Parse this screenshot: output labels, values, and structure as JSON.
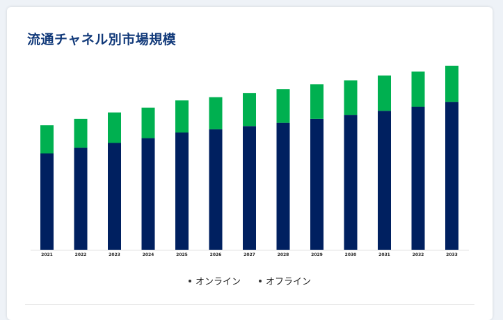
{
  "title": "流通チャネル別市場規模",
  "colors": {
    "online": "#002060",
    "offline": "#00b050",
    "title": "#123a7a"
  },
  "chart_data": {
    "type": "bar",
    "stacked": true,
    "categories": [
      "2021",
      "2022",
      "2023",
      "2024",
      "2025",
      "2026",
      "2027",
      "2028",
      "2029",
      "2030",
      "2031",
      "2032",
      "2033"
    ],
    "series": [
      {
        "name": "オンライン",
        "values": [
          120,
          127,
          133,
          139,
          146,
          150,
          154,
          158,
          163,
          168,
          173,
          178,
          184
        ]
      },
      {
        "name": "オフライン",
        "values": [
          35,
          36,
          38,
          38,
          40,
          40,
          41,
          42,
          43,
          43,
          44,
          44,
          45
        ]
      }
    ],
    "ylim": [
      0,
      240
    ],
    "grid": false,
    "legend_position": "bottom"
  }
}
